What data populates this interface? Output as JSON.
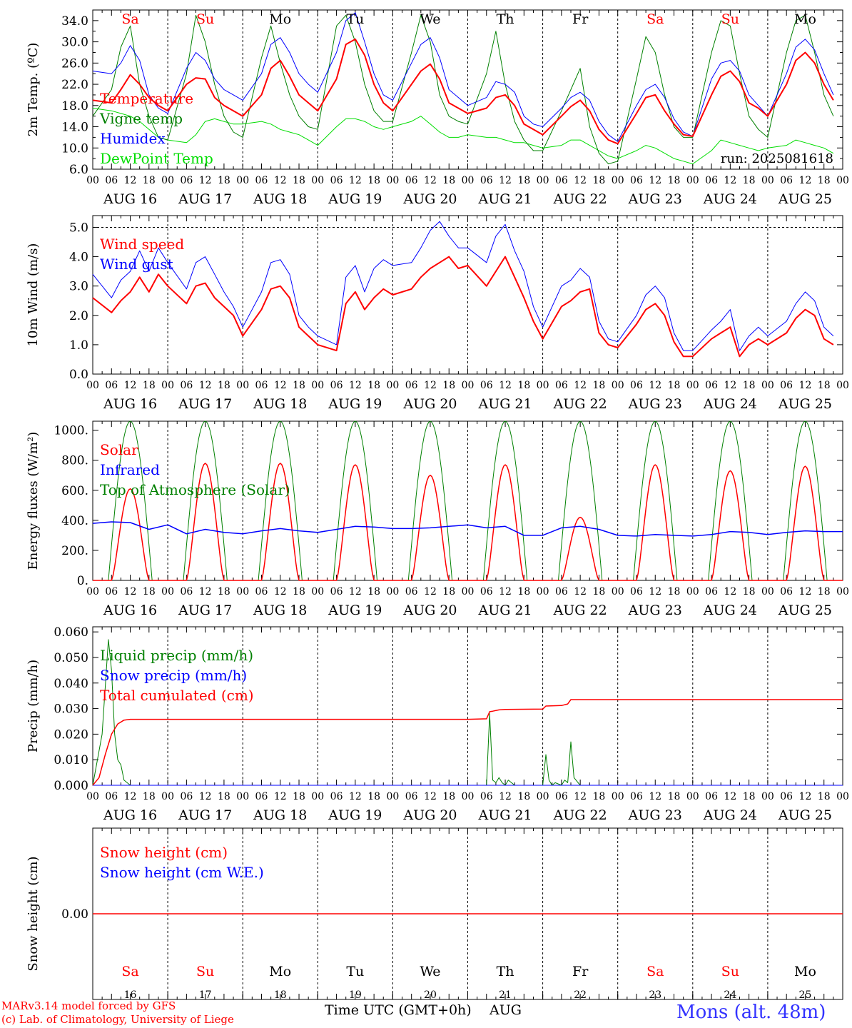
{
  "days": {
    "dates": [
      "AUG 16",
      "AUG 17",
      "AUG 18",
      "AUG 19",
      "AUG 20",
      "AUG 21",
      "AUG 22",
      "AUG 23",
      "AUG 24",
      "AUG 25"
    ],
    "weekdays": [
      "Sa",
      "Su",
      "Mo",
      "Tu",
      "We",
      "Th",
      "Fr",
      "Sa",
      "Su",
      "Mo"
    ],
    "weekday_colors": [
      "#ff0000",
      "#ff0000",
      "#000000",
      "#000000",
      "#000000",
      "#000000",
      "#000000",
      "#ff0000",
      "#ff0000",
      "#000000"
    ],
    "day_numbers": [
      "16",
      "17",
      "18",
      "19",
      "20",
      "21",
      "22",
      "23",
      "24",
      "25"
    ],
    "hour_ticks": [
      "00",
      "06",
      "12",
      "18"
    ],
    "final_tick": "00"
  },
  "colors": {
    "red": "#ff0000",
    "green": "#008000",
    "blue": "#0000ff",
    "light_green": "#00dd00",
    "axis": "#000000"
  },
  "chart_data": [
    {
      "id": "temperature",
      "type": "line",
      "ylabel": "2m Temp. (ºC)",
      "ylim": [
        6,
        36
      ],
      "yticks": [
        "6.0",
        "10.0",
        "14.0",
        "18.0",
        "22.0",
        "26.0",
        "30.0",
        "34.0"
      ],
      "ytick_values": [
        6,
        10,
        14,
        18,
        22,
        26,
        30,
        34
      ],
      "annotation": "run: 2025081618",
      "legend": [
        {
          "label": "Temperature",
          "color": "#ff0000"
        },
        {
          "label": "Vigne temp",
          "color": "#008000"
        },
        {
          "label": "Humidex",
          "color": "#0000ff"
        },
        {
          "label": "DewPoint Temp",
          "color": "#00dd00"
        }
      ],
      "x_hours": [
        0,
        6,
        9,
        12,
        15,
        18,
        21,
        24,
        30,
        33,
        36,
        39,
        42,
        45,
        48,
        54,
        57,
        60,
        63,
        66,
        69,
        72,
        78,
        81,
        84,
        87,
        90,
        93,
        96,
        102,
        105,
        108,
        111,
        114,
        117,
        120,
        126,
        129,
        132,
        135,
        138,
        141,
        144,
        150,
        153,
        156,
        159,
        162,
        165,
        168,
        174,
        177,
        180,
        183,
        186,
        189,
        192,
        198,
        201,
        204,
        207,
        210,
        213,
        216,
        222,
        225,
        228,
        231,
        234,
        237,
        240
      ],
      "series": [
        {
          "name": "Temperature",
          "color": "#ff0000",
          "width": 2,
          "values": [
            19,
            18.5,
            21,
            23.8,
            22,
            19.5,
            18,
            17,
            22,
            23.2,
            23,
            19.5,
            18,
            17,
            16,
            20,
            25,
            26.5,
            23.5,
            20,
            18.5,
            17,
            23,
            29.5,
            30.5,
            27.5,
            22,
            18.5,
            17,
            22,
            24.5,
            25.8,
            23,
            18.5,
            17.5,
            16.5,
            17.5,
            19.5,
            20,
            18,
            14.5,
            13.5,
            12.5,
            16,
            17.8,
            19,
            17,
            13.5,
            11.5,
            10.8,
            16.5,
            19.5,
            20,
            17,
            14.5,
            12.5,
            12.2,
            20,
            23.5,
            24.5,
            22.5,
            18.5,
            17.5,
            16,
            22,
            26.5,
            28,
            26,
            22,
            19
          ]
        },
        {
          "name": "Vigne temp",
          "color": "#008000",
          "width": 1,
          "values": [
            16,
            21,
            29,
            33,
            22,
            16,
            12,
            11.5,
            24,
            35,
            30,
            22,
            16,
            13,
            12,
            27,
            33,
            26,
            20,
            16,
            14,
            13.5,
            33,
            35,
            30,
            22,
            17,
            15,
            15,
            28,
            35,
            30,
            20,
            16,
            15,
            14.5,
            24,
            32,
            22,
            15,
            11.5,
            9.5,
            9.5,
            17,
            21,
            25,
            14,
            9,
            7,
            7.5,
            23,
            31,
            28,
            20,
            14,
            12,
            12,
            28,
            34,
            33,
            24,
            16,
            13.5,
            12,
            28,
            34,
            35,
            28,
            20,
            16
          ]
        },
        {
          "name": "Humidex",
          "color": "#0000ff",
          "width": 1,
          "values": [
            24.5,
            24,
            26,
            29.3,
            26.5,
            20,
            17.5,
            16.5,
            25,
            28,
            26.5,
            23,
            21,
            20,
            19,
            24,
            29.5,
            30.8,
            28,
            24,
            22,
            20.5,
            28,
            34,
            35.5,
            30,
            24,
            20,
            19,
            26,
            29.5,
            30.8,
            27,
            21,
            19.5,
            18,
            19.5,
            22.5,
            22,
            20.5,
            16,
            14.5,
            14,
            17.5,
            19.5,
            20.5,
            19,
            15,
            12.5,
            11.2,
            18,
            21,
            22,
            19.5,
            15.5,
            13,
            12.2,
            23,
            26,
            26.5,
            24.5,
            20,
            18,
            16,
            24,
            29,
            30.5,
            28.5,
            24,
            20
          ]
        },
        {
          "name": "DewPoint Temp",
          "color": "#00dd00",
          "width": 1,
          "values": [
            17.5,
            17,
            16.5,
            16,
            15,
            13.5,
            12,
            11.5,
            11,
            12.5,
            15,
            15.5,
            15,
            14.5,
            14.5,
            15,
            14.5,
            13.5,
            13,
            12.5,
            11.5,
            10.5,
            14,
            15.5,
            15.5,
            15,
            14,
            13.5,
            14,
            15,
            16,
            14.5,
            13,
            12,
            12,
            12.5,
            12,
            12,
            11.5,
            11,
            11,
            10.5,
            10,
            10.5,
            11.5,
            11.5,
            10.5,
            9.5,
            8.5,
            8,
            9.5,
            10.5,
            10,
            9,
            8,
            7.5,
            7,
            9.5,
            11.5,
            11,
            10.5,
            10,
            9.5,
            10,
            10.5,
            11.5,
            11,
            10.5,
            10,
            9
          ]
        }
      ]
    },
    {
      "id": "wind",
      "type": "line",
      "ylabel": "10m Wind (m/s)",
      "ylim": [
        0,
        5.4
      ],
      "yticks": [
        "0.0",
        "1.0",
        "2.0",
        "3.0",
        "4.0",
        "5.0"
      ],
      "ytick_values": [
        0,
        1,
        2,
        3,
        4,
        5
      ],
      "dashed_y": 5.0,
      "legend": [
        {
          "label": "Wind speed",
          "color": "#ff0000"
        },
        {
          "label": "Wind gust",
          "color": "#0000ff"
        }
      ],
      "x_hours": [
        0,
        6,
        9,
        12,
        15,
        18,
        21,
        24,
        30,
        33,
        36,
        39,
        42,
        45,
        48,
        54,
        57,
        60,
        63,
        66,
        69,
        72,
        78,
        81,
        84,
        87,
        90,
        93,
        96,
        102,
        105,
        108,
        111,
        114,
        117,
        120,
        126,
        129,
        132,
        135,
        138,
        141,
        144,
        150,
        153,
        156,
        159,
        162,
        165,
        168,
        174,
        177,
        180,
        183,
        186,
        189,
        192,
        198,
        201,
        204,
        207,
        210,
        213,
        216,
        222,
        225,
        228,
        231,
        234,
        237,
        240
      ],
      "series": [
        {
          "name": "Wind speed",
          "color": "#ff0000",
          "width": 2,
          "values": [
            2.6,
            2.1,
            2.5,
            2.8,
            3.3,
            2.8,
            3.4,
            3.0,
            2.4,
            3.0,
            3.1,
            2.6,
            2.3,
            2.0,
            1.3,
            2.2,
            2.9,
            3.0,
            2.6,
            1.6,
            1.3,
            1.0,
            0.8,
            2.4,
            2.8,
            2.2,
            2.6,
            2.9,
            2.7,
            2.9,
            3.3,
            3.6,
            3.8,
            4.0,
            3.6,
            3.7,
            3.0,
            3.5,
            4.0,
            3.3,
            2.6,
            1.8,
            1.2,
            2.3,
            2.5,
            2.8,
            2.9,
            1.4,
            1.0,
            0.9,
            1.7,
            2.2,
            2.4,
            2.0,
            1.1,
            0.6,
            0.6,
            1.2,
            1.4,
            1.6,
            0.6,
            1.0,
            1.2,
            1.0,
            1.4,
            1.9,
            2.2,
            2.0,
            1.2,
            1.0
          ]
        },
        {
          "name": "Wind gust",
          "color": "#0000ff",
          "width": 1,
          "values": [
            3.4,
            2.6,
            3.2,
            3.5,
            4.2,
            3.5,
            4.3,
            3.8,
            2.9,
            3.8,
            4.0,
            3.4,
            2.8,
            2.3,
            1.6,
            2.8,
            3.8,
            3.9,
            3.4,
            2.0,
            1.6,
            1.3,
            1.0,
            3.3,
            3.7,
            2.8,
            3.6,
            3.9,
            3.7,
            3.8,
            4.3,
            4.9,
            5.2,
            4.7,
            4.3,
            4.3,
            3.8,
            4.7,
            5.1,
            4.2,
            3.5,
            2.3,
            1.6,
            3.0,
            3.2,
            3.6,
            3.3,
            1.8,
            1.2,
            1.1,
            2.0,
            2.7,
            3.0,
            2.6,
            1.4,
            0.8,
            0.8,
            1.5,
            1.8,
            2.2,
            0.8,
            1.3,
            1.6,
            1.3,
            1.8,
            2.4,
            2.8,
            2.5,
            1.6,
            1.3
          ]
        }
      ]
    },
    {
      "id": "energy",
      "type": "line",
      "ylabel": "Energy fluxes (W/m²)",
      "ylim": [
        0,
        1060
      ],
      "yticks": [
        "0.",
        "200.",
        "400.",
        "600.",
        "800.",
        "1000."
      ],
      "ytick_values": [
        0,
        200,
        400,
        600,
        800,
        1000
      ],
      "legend": [
        {
          "label": "Solar",
          "color": "#ff0000"
        },
        {
          "label": "Infrared",
          "color": "#0000ff"
        },
        {
          "label": "Top of Atmosphere (Solar)",
          "color": "#008000"
        }
      ],
      "solar_peaks": [
        610,
        780,
        780,
        770,
        700,
        770,
        420,
        770,
        730,
        760
      ],
      "toa_peak": 1060,
      "daylight_hours": [
        5,
        19
      ],
      "infrared": {
        "x_hours": [
          0,
          6,
          12,
          18,
          24,
          30,
          36,
          42,
          48,
          54,
          60,
          66,
          72,
          78,
          84,
          90,
          96,
          102,
          108,
          114,
          120,
          126,
          132,
          138,
          144,
          150,
          156,
          162,
          168,
          174,
          180,
          186,
          192,
          198,
          204,
          210,
          216,
          222,
          228,
          234,
          240
        ],
        "values": [
          380,
          390,
          385,
          340,
          370,
          310,
          340,
          320,
          310,
          330,
          345,
          330,
          320,
          340,
          360,
          355,
          345,
          345,
          350,
          360,
          370,
          350,
          360,
          300,
          300,
          350,
          360,
          340,
          300,
          295,
          305,
          300,
          295,
          305,
          325,
          320,
          305,
          320,
          330,
          325,
          325
        ]
      }
    },
    {
      "id": "precip",
      "type": "line",
      "ylabel": "Precip (mm/h)",
      "ylim": [
        0,
        0.062
      ],
      "yticks": [
        "0.000",
        "0.010",
        "0.020",
        "0.030",
        "0.040",
        "0.050",
        "0.060"
      ],
      "ytick_values": [
        0,
        0.01,
        0.02,
        0.03,
        0.04,
        0.05,
        0.06
      ],
      "legend": [
        {
          "label": "Liquid precip (mm/h)",
          "color": "#008000"
        },
        {
          "label": "Snow precip (mm/h)",
          "color": "#0000ff"
        },
        {
          "label": "Total cumulated (cm)",
          "color": "#ff0000"
        }
      ],
      "liquid": {
        "x_hours": [
          0,
          3,
          5,
          6,
          7,
          8,
          9,
          10,
          11,
          12,
          14,
          126,
          127,
          128,
          129,
          130,
          131,
          132,
          133,
          134,
          135,
          137,
          144,
          145,
          146,
          147,
          148,
          150,
          151,
          152,
          153,
          154,
          156,
          240
        ],
        "values": [
          0,
          0.02,
          0.057,
          0.045,
          0.02,
          0.01,
          0.008,
          0.002,
          0.001,
          0,
          0,
          0,
          0.028,
          0.002,
          0.001,
          0.003,
          0.001,
          0,
          0.002,
          0.001,
          0,
          0,
          0,
          0.012,
          0.002,
          0,
          0.001,
          0,
          0.002,
          0.001,
          0.017,
          0.003,
          0,
          0
        ]
      },
      "total": {
        "x_hours": [
          0,
          2,
          4,
          6,
          8,
          10,
          12,
          24,
          36,
          48,
          72,
          96,
          120,
          126,
          127,
          128,
          130,
          132,
          144,
          145,
          150,
          152,
          153,
          160,
          240
        ],
        "values": [
          0,
          0.003,
          0.012,
          0.02,
          0.024,
          0.0255,
          0.0258,
          0.0258,
          0.0258,
          0.0258,
          0.0258,
          0.0258,
          0.0258,
          0.026,
          0.0288,
          0.029,
          0.0295,
          0.0297,
          0.0298,
          0.031,
          0.0312,
          0.0318,
          0.0335,
          0.0335,
          0.0335
        ]
      }
    },
    {
      "id": "snow",
      "type": "line",
      "ylabel": "Snow height (cm)",
      "ylim": [
        -1,
        1
      ],
      "yticks": [
        "0.00"
      ],
      "ytick_values": [
        0
      ],
      "legend": [
        {
          "label": "Snow height (cm)",
          "color": "#ff0000"
        },
        {
          "label": "Snow height (cm W.E.)",
          "color": "#0000ff"
        }
      ],
      "series": [
        {
          "name": "Snow height (cm)",
          "color": "#ff0000",
          "x_hours": [
            0,
            240
          ],
          "values": [
            0,
            0
          ]
        }
      ]
    }
  ],
  "footer": {
    "xlabel": "Time UTC (GMT+0h)",
    "month": "AUG",
    "credit_line1": "MARv3.14 model forced by GFS",
    "credit_line2": "(c) Lab. of Climatology, University of Liege",
    "station": "Mons (alt. 48m)"
  }
}
